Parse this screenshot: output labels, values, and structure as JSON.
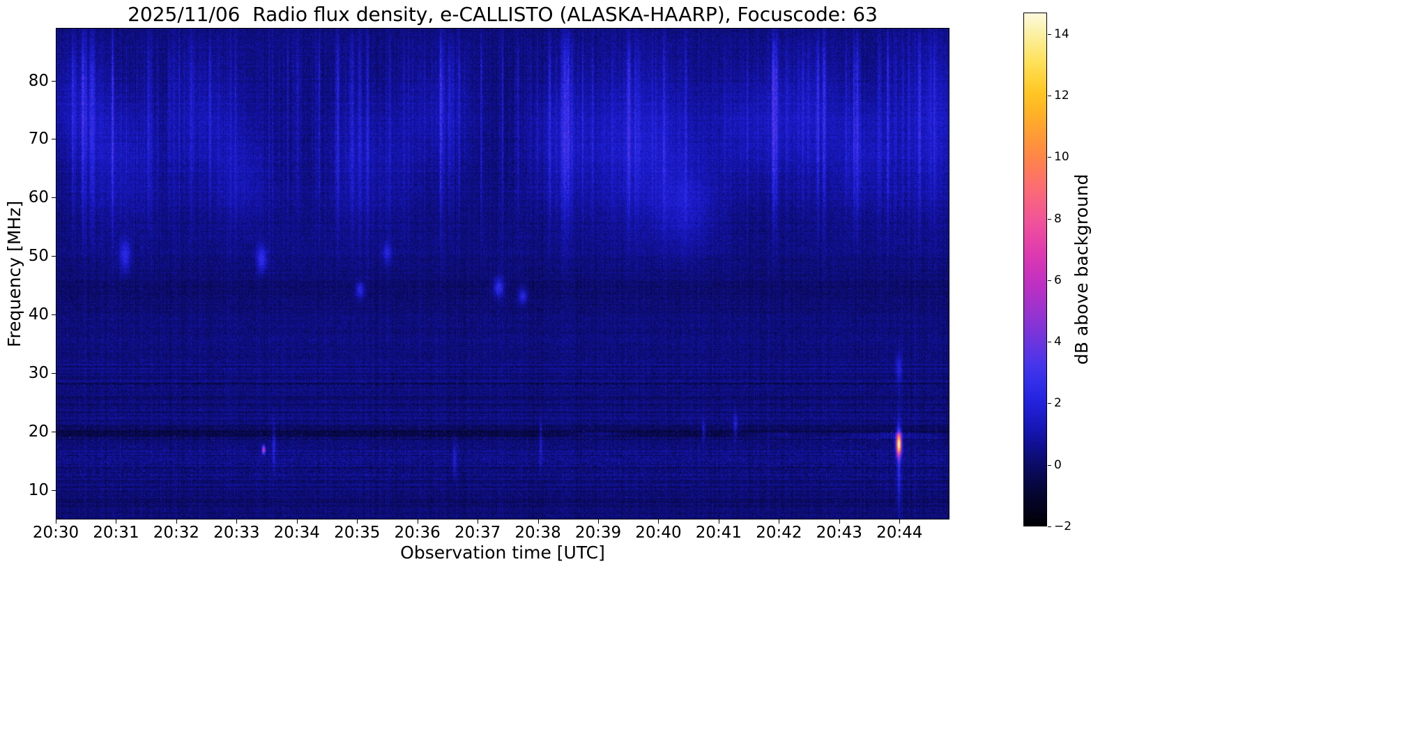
{
  "chart_data": {
    "type": "heatmap",
    "title": "2025/11/06  Radio flux density, e-CALLISTO (ALASKA-HAARP), Focuscode: 63",
    "xlabel": "Observation time [UTC]",
    "ylabel": "Frequency [MHz]",
    "x_range_minutes": [
      0,
      14.83
    ],
    "y_range_mhz": [
      5,
      89
    ],
    "x_ticks": [
      {
        "minute": 0,
        "label": "20:30"
      },
      {
        "minute": 1,
        "label": "20:31"
      },
      {
        "minute": 2,
        "label": "20:32"
      },
      {
        "minute": 3,
        "label": "20:33"
      },
      {
        "minute": 4,
        "label": "20:34"
      },
      {
        "minute": 5,
        "label": "20:35"
      },
      {
        "minute": 6,
        "label": "20:36"
      },
      {
        "minute": 7,
        "label": "20:37"
      },
      {
        "minute": 8,
        "label": "20:38"
      },
      {
        "minute": 9,
        "label": "20:39"
      },
      {
        "minute": 10,
        "label": "20:40"
      },
      {
        "minute": 11,
        "label": "20:41"
      },
      {
        "minute": 12,
        "label": "20:42"
      },
      {
        "minute": 13,
        "label": "20:43"
      },
      {
        "minute": 14,
        "label": "20:44"
      }
    ],
    "y_ticks": [
      {
        "v": 10,
        "label": "10"
      },
      {
        "v": 20,
        "label": "20"
      },
      {
        "v": 30,
        "label": "30"
      },
      {
        "v": 40,
        "label": "40"
      },
      {
        "v": 50,
        "label": "50"
      },
      {
        "v": 60,
        "label": "60"
      },
      {
        "v": 70,
        "label": "70"
      },
      {
        "v": 80,
        "label": "80"
      }
    ],
    "colorbar": {
      "label": "dB above background",
      "range": [
        -2,
        14.7
      ],
      "ticks": [
        {
          "v": -2,
          "label": "−2"
        },
        {
          "v": 0,
          "label": "0"
        },
        {
          "v": 2,
          "label": "2"
        },
        {
          "v": 4,
          "label": "4"
        },
        {
          "v": 6,
          "label": "6"
        },
        {
          "v": 8,
          "label": "8"
        },
        {
          "v": 10,
          "label": "10"
        },
        {
          "v": 12,
          "label": "12"
        },
        {
          "v": 14,
          "label": "14"
        }
      ],
      "colormap_stops": [
        {
          "v": -2.0,
          "c": "#000004"
        },
        {
          "v": -1.0,
          "c": "#050530"
        },
        {
          "v": 0.0,
          "c": "#0b0b66"
        },
        {
          "v": 1.0,
          "c": "#1414ad"
        },
        {
          "v": 2.0,
          "c": "#2222dd"
        },
        {
          "v": 3.0,
          "c": "#3b35ee"
        },
        {
          "v": 4.0,
          "c": "#6d35dd"
        },
        {
          "v": 5.0,
          "c": "#9b33cf"
        },
        {
          "v": 6.0,
          "c": "#c42fc0"
        },
        {
          "v": 7.0,
          "c": "#e13dae"
        },
        {
          "v": 8.0,
          "c": "#f25598"
        },
        {
          "v": 9.0,
          "c": "#fb6c73"
        },
        {
          "v": 10.0,
          "c": "#ff8548"
        },
        {
          "v": 11.0,
          "c": "#ffa42f"
        },
        {
          "v": 12.0,
          "c": "#ffc31e"
        },
        {
          "v": 13.0,
          "c": "#ffdf50"
        },
        {
          "v": 14.0,
          "c": "#faefa2"
        },
        {
          "v": 15.0,
          "c": "#fffef8"
        }
      ]
    },
    "spectrogram": {
      "seed": 20251106,
      "background_db": 0.3,
      "features": [
        {
          "name": "vertical-striation-band",
          "freq_range_mhz": [
            52,
            88
          ],
          "note": "blue vertical streaks, ~1-3 dB"
        },
        {
          "name": "diagonal-interference-band",
          "freq_range_mhz": [
            41,
            48
          ],
          "note": "hatched dark/light pattern"
        },
        {
          "name": "dark-band",
          "freq_mhz": 19.8,
          "note": "dark horizontal band with bright speckles"
        },
        {
          "name": "textured-band",
          "freq_range_mhz": [
            12,
            17.5
          ],
          "note": "speckled horizontal structure"
        },
        {
          "name": "dotted-dark-line",
          "freq_mhz": 28
        },
        {
          "name": "bright-transient",
          "time_utc": "20:44",
          "freq_mhz": 17.9,
          "peak_db": 14
        }
      ],
      "bright_patches": [
        {
          "t": 0.35,
          "f": 76,
          "st": 0.35,
          "sf": 7,
          "amp": 0.9
        },
        {
          "t": 1.05,
          "f": 67,
          "st": 0.5,
          "sf": 8,
          "amp": 1.0
        },
        {
          "t": 2.55,
          "f": 73,
          "st": 0.45,
          "sf": 8,
          "amp": 0.8
        },
        {
          "t": 3.1,
          "f": 63,
          "st": 0.35,
          "sf": 6,
          "amp": 0.7
        },
        {
          "t": 5.2,
          "f": 67,
          "st": 0.5,
          "sf": 8,
          "amp": 0.8
        },
        {
          "t": 6.4,
          "f": 74,
          "st": 0.4,
          "sf": 7,
          "amp": 0.7
        },
        {
          "t": 8.3,
          "f": 70,
          "st": 0.4,
          "sf": 8,
          "amp": 0.8
        },
        {
          "t": 9.75,
          "f": 69,
          "st": 0.8,
          "sf": 9,
          "amp": 1.25
        },
        {
          "t": 10.45,
          "f": 58,
          "st": 0.35,
          "sf": 5,
          "amp": 0.9
        },
        {
          "t": 11.5,
          "f": 72,
          "st": 0.4,
          "sf": 7,
          "amp": 0.8
        },
        {
          "t": 12.45,
          "f": 73,
          "st": 0.5,
          "sf": 8,
          "amp": 1.0
        },
        {
          "t": 13.4,
          "f": 68,
          "st": 0.35,
          "sf": 7,
          "amp": 0.9
        },
        {
          "t": 14.55,
          "f": 72,
          "st": 0.45,
          "sf": 10,
          "amp": 1.15
        },
        {
          "t": 1.15,
          "f": 50,
          "st": 0.06,
          "sf": 1.8,
          "amp": 2.0
        },
        {
          "t": 3.42,
          "f": 49.5,
          "st": 0.06,
          "sf": 1.5,
          "amp": 2.2
        },
        {
          "t": 5.05,
          "f": 44.2,
          "st": 0.05,
          "sf": 0.9,
          "amp": 2.2
        },
        {
          "t": 7.35,
          "f": 44.6,
          "st": 0.06,
          "sf": 1.1,
          "amp": 2.4
        },
        {
          "t": 7.75,
          "f": 43.2,
          "st": 0.05,
          "sf": 0.9,
          "amp": 2.0
        },
        {
          "t": 5.5,
          "f": 50.5,
          "st": 0.05,
          "sf": 1.2,
          "amp": 1.6
        },
        {
          "t": 3.45,
          "f": 16.9,
          "st": 0.018,
          "sf": 0.5,
          "amp": 6.5
        },
        {
          "t": 3.62,
          "f": 17.5,
          "st": 0.02,
          "sf": 2.5,
          "amp": 1.8
        },
        {
          "t": 6.62,
          "f": 15.5,
          "st": 0.02,
          "sf": 2.0,
          "amp": 1.6
        },
        {
          "t": 8.05,
          "f": 18.0,
          "st": 0.02,
          "sf": 3.0,
          "amp": 1.5
        },
        {
          "t": 10.75,
          "f": 20.2,
          "st": 0.02,
          "sf": 1.2,
          "amp": 1.7
        },
        {
          "t": 11.28,
          "f": 21.0,
          "st": 0.025,
          "sf": 1.5,
          "amp": 1.8
        },
        {
          "t": 9.0,
          "f": 19.6,
          "st": 0.3,
          "sf": 0.3,
          "amp": 0.9
        },
        {
          "t": 12.0,
          "f": 19.5,
          "st": 0.4,
          "sf": 0.3,
          "amp": 1.0
        },
        {
          "t": 13.9,
          "f": 19.4,
          "st": 0.8,
          "sf": 0.35,
          "amp": 1.4
        },
        {
          "t": 13.99,
          "f": 17.9,
          "st": 0.03,
          "sf": 1.3,
          "amp": 12.5
        },
        {
          "t": 13.99,
          "f": 15.0,
          "st": 0.022,
          "sf": 5.5,
          "amp": 2.2
        },
        {
          "t": 13.99,
          "f": 30.8,
          "st": 0.035,
          "sf": 1.8,
          "amp": 1.6
        }
      ]
    }
  }
}
